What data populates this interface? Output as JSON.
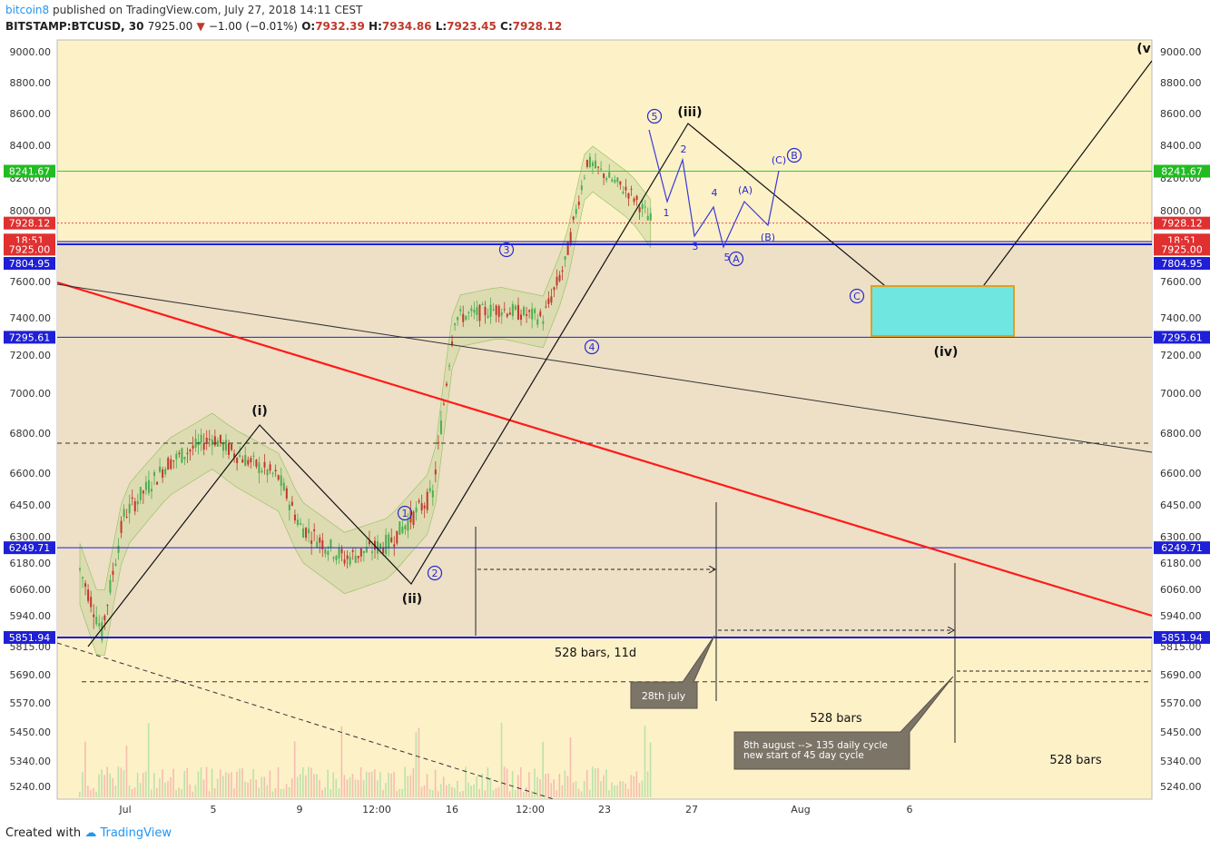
{
  "header": {
    "user": "bitcoin8",
    "published_text": "published on TradingView.com, July 27, 2018 14:11 CEST",
    "symbol": "BITSTAMP:BTCUSD, 30",
    "last": "7925.00",
    "change": "−1.00 (−0.01%)",
    "o_label": "O:",
    "o": "7932.39",
    "h_label": "H:",
    "h": "7934.86",
    "l_label": "L:",
    "l": "7923.45",
    "c_label": "C:",
    "c": "7928.12"
  },
  "footer": {
    "created_with": "Created with",
    "brand": "TradingView"
  },
  "colors": {
    "plot_bg": "#fdf1c8",
    "range_bg": "#ede0c6",
    "red_line": "#ff1a1a",
    "blue_line": "#1f1fd6",
    "green_line": "#33cc33",
    "target_box": "#70e6e0",
    "target_border": "#e0a020",
    "candle_up": "#4caf50",
    "candle_down": "#c0392b"
  },
  "chart_data": {
    "type": "line",
    "title": "",
    "y_axis_ticks": [
      "9000.00",
      "8800.00",
      "8600.00",
      "8400.00",
      "8200.00",
      "8000.00",
      "7800.00",
      "7600.00",
      "7400.00",
      "7200.00",
      "7000.00",
      "6800.00",
      "6600.00",
      "6450.00",
      "6300.00",
      "6180.00",
      "6060.00",
      "5940.00",
      "5815.00",
      "5690.00",
      "5570.00",
      "5450.00",
      "5340.00",
      "5240.00"
    ],
    "x_axis_ticks": [
      "Jul",
      "5",
      "9",
      "12:00",
      "16",
      "12:00",
      "23",
      "27",
      "Aug",
      "6"
    ],
    "price_labels": [
      {
        "text": "8241.67",
        "kind": "green",
        "y": 8241.67
      },
      {
        "text": "7928.12",
        "kind": "red",
        "y": 7928.12
      },
      {
        "text": "18:51",
        "kind": "red",
        "y": 7830
      },
      {
        "text": "7925.00",
        "kind": "red",
        "y": 7778
      },
      {
        "text": "7804.95",
        "kind": "blue",
        "y": 7700
      },
      {
        "text": "7295.61",
        "kind": "blue",
        "y": 7295.61
      },
      {
        "text": "6249.71",
        "kind": "blue",
        "y": 6249.71
      },
      {
        "text": "5851.94",
        "kind": "blue",
        "y": 5851.94
      }
    ],
    "horizontal_levels": [
      8241.67,
      7928.12,
      7804.95,
      7295.61,
      6249.71,
      5851.94,
      6750,
      5660
    ],
    "price_path": [
      {
        "x": "Jul 1",
        "y": 6150
      },
      {
        "x": "Jul 2",
        "y": 5870
      },
      {
        "x": "Jul 3",
        "y": 6400
      },
      {
        "x": "Jul 5",
        "y": 6650
      },
      {
        "x": "Jul 7",
        "y": 6780
      },
      {
        "x": "Jul 8",
        "y": 6700
      },
      {
        "x": "Jul 10",
        "y": 6580
      },
      {
        "x": "Jul 11",
        "y": 6350
      },
      {
        "x": "Jul 13",
        "y": 6200
      },
      {
        "x": "Jul 15",
        "y": 6270
      },
      {
        "x": "Jul 17",
        "y": 6500
      },
      {
        "x": "Jul 18",
        "y": 7400
      },
      {
        "x": "Jul 20",
        "y": 7450
      },
      {
        "x": "Jul 22",
        "y": 7400
      },
      {
        "x": "Jul 23",
        "y": 7700
      },
      {
        "x": "Jul 24",
        "y": 8300
      },
      {
        "x": "Jul 25",
        "y": 8200
      },
      {
        "x": "Jul 26",
        "y": 8100
      },
      {
        "x": "Jul 27",
        "y": 7925
      }
    ],
    "wave_labels": [
      {
        "text": "(i)",
        "x": "Jul 7",
        "y": 6900
      },
      {
        "text": "(ii)",
        "x": "Jul 13",
        "y": 5990
      },
      {
        "text": "(iii)",
        "x": "Jul 26",
        "y": 8640
      },
      {
        "text": "(iv)",
        "x": "Aug 5",
        "y": 7180
      },
      {
        "text": "(v",
        "x": "Aug 12",
        "y": 9020
      }
    ],
    "circled_labels": [
      "1",
      "2",
      "3",
      "4",
      "5",
      "A",
      "B",
      "C"
    ],
    "minor_labels": [
      "1",
      "2",
      "3",
      "4",
      "5",
      "(A)",
      "(B)",
      "(C)"
    ],
    "annotations": [
      {
        "text": "528 bars, 11d"
      },
      {
        "text": "28th july"
      },
      {
        "text": "528 bars"
      },
      {
        "text": "528 bars"
      },
      {
        "text": "8th august --> 135 daily cycle"
      },
      {
        "text": "new start of 45 day cycle"
      }
    ]
  }
}
